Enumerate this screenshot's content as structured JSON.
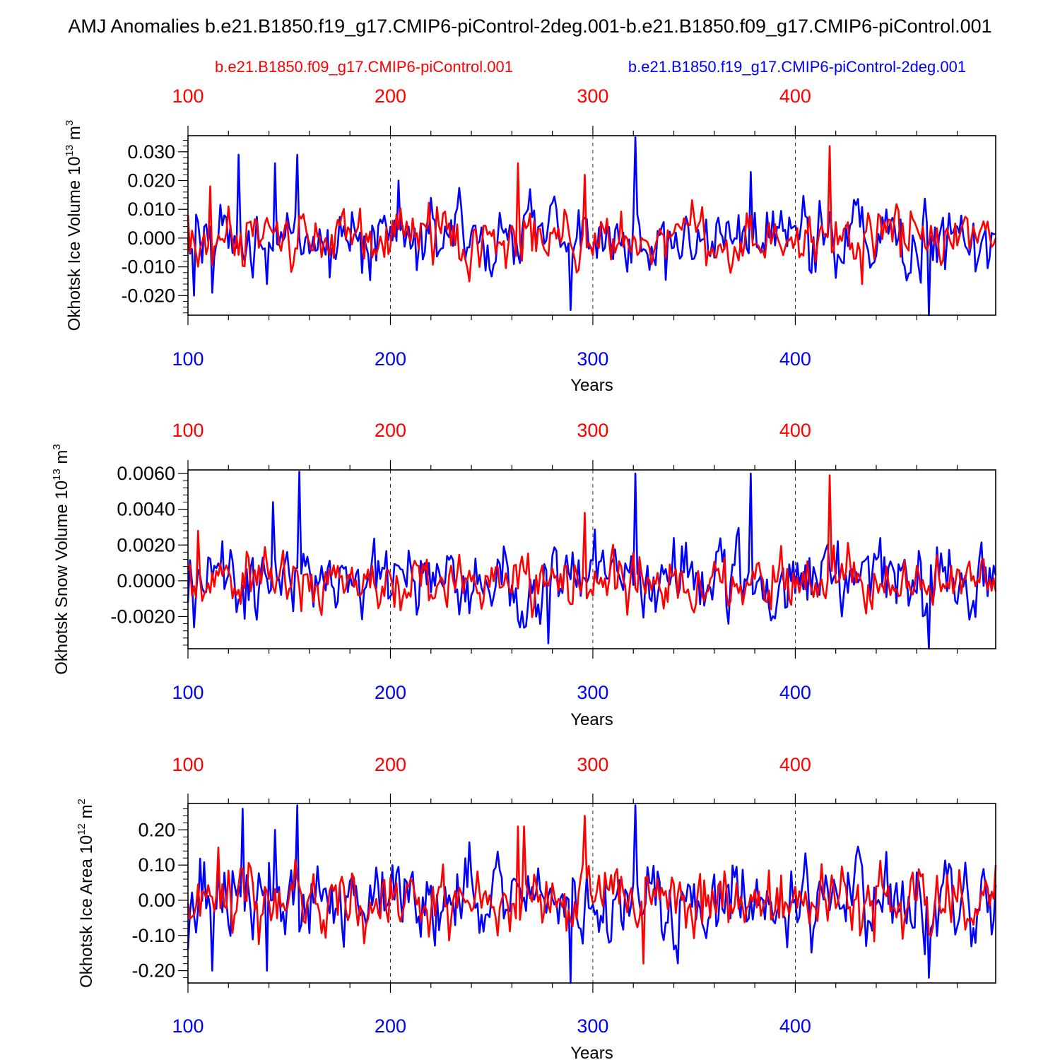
{
  "title": "AMJ Anomalies b.e21.B1850.f19_g17.CMIP6-piControl-2deg.001-b.e21.B1850.f09_g17.CMIP6-piControl.001",
  "legend": [
    {
      "name": "b.e21.B1850.f09_g17.CMIP6-piControl.001",
      "color": "#ff0000"
    },
    {
      "name": "b.e21.B1850.f19_g17.CMIP6-piControl-2deg.001",
      "color": "#0000ff"
    }
  ],
  "colors": {
    "red": "#ff0000",
    "blue": "#0000ff",
    "axis": "#000000"
  },
  "chart_data": [
    {
      "type": "line",
      "ylabel": {
        "text": "Okhotsk Ice Volume 10",
        "exp": "13",
        "unit": " m",
        "unit_exp": "3"
      },
      "xlabel": "Years",
      "xlim": [
        100,
        499
      ],
      "ylim": [
        -0.0268,
        0.0356
      ],
      "yticks": [
        -0.02,
        -0.01,
        0.0,
        0.01,
        0.02,
        0.03
      ],
      "ytick_labels": [
        "-0.020",
        "-0.010",
        "0.000",
        "0.010",
        "0.020",
        "0.030"
      ],
      "xticks_top": [
        "100",
        "200",
        "300",
        "400"
      ],
      "xticks_bottom": [
        "100",
        "200",
        "300",
        "400"
      ],
      "series": [
        {
          "name": "b.e21.B1850.f19_g17.CMIP6-piControl-2deg.001",
          "color": "#0000ff",
          "amplitude": 0.0075,
          "seed": 17,
          "spikes": [
            [
              100,
              0.0
            ],
            [
              103,
              -0.02
            ],
            [
              112,
              -0.019
            ],
            [
              125,
              0.029
            ],
            [
              139,
              -0.016
            ],
            [
              143,
              0.026
            ],
            [
              154,
              0.029
            ],
            [
              204,
              0.02
            ],
            [
              289,
              -0.025
            ],
            [
              321,
              0.035
            ],
            [
              378,
              0.023
            ],
            [
              466,
              -0.027
            ]
          ]
        },
        {
          "name": "b.e21.B1850.f09_g17.CMIP6-piControl.001",
          "color": "#ff0000",
          "amplitude": 0.0055,
          "seed": 41,
          "spikes": [
            [
              100,
              0.008
            ],
            [
              111,
              0.018
            ],
            [
              263,
              0.026
            ],
            [
              296,
              0.022
            ],
            [
              417,
              0.032
            ],
            [
              433,
              -0.016
            ],
            [
              499,
              0.0
            ]
          ]
        }
      ]
    },
    {
      "type": "line",
      "ylabel": {
        "text": "Okhotsk Snow Volume 10",
        "exp": "13",
        "unit": " m",
        "unit_exp": "3"
      },
      "xlabel": "Years",
      "xlim": [
        100,
        499
      ],
      "ylim": [
        -0.0038,
        0.0062
      ],
      "yticks": [
        -0.002,
        0.0,
        0.002,
        0.004,
        0.006
      ],
      "ytick_labels": [
        "-0.0020",
        "0.0000",
        "0.0020",
        "0.0040",
        "0.0060"
      ],
      "xticks_top": [
        "100",
        "200",
        "300",
        "400"
      ],
      "xticks_bottom": [
        "100",
        "200",
        "300",
        "400"
      ],
      "series": [
        {
          "name": "b.e21.B1850.f19_g17.CMIP6-piControl-2deg.001",
          "color": "#0000ff",
          "amplitude": 0.0012,
          "seed": 23,
          "spikes": [
            [
              103,
              -0.0026
            ],
            [
              142,
              0.0044
            ],
            [
              155,
              0.0061
            ],
            [
              278,
              -0.0035
            ],
            [
              321,
              0.006
            ],
            [
              378,
              0.006
            ],
            [
              466,
              -0.0038
            ]
          ]
        },
        {
          "name": "b.e21.B1850.f09_g17.CMIP6-piControl.001",
          "color": "#ff0000",
          "amplitude": 0.0009,
          "seed": 59,
          "spikes": [
            [
              105,
              0.0028
            ],
            [
              296,
              0.0038
            ],
            [
              417,
              0.0059
            ]
          ]
        }
      ]
    },
    {
      "type": "line",
      "ylabel": {
        "text": "Okhotsk Ice Area 10",
        "exp": "12",
        "unit": " m",
        "unit_exp": "2"
      },
      "xlabel": "Years",
      "xlim": [
        100,
        499
      ],
      "ylim": [
        -0.235,
        0.275
      ],
      "yticks": [
        -0.2,
        -0.1,
        0.0,
        0.1,
        0.2
      ],
      "ytick_labels": [
        "-0.20",
        "-0.10",
        "0.00",
        "0.10",
        "0.20"
      ],
      "xticks_top": [
        "100",
        "200",
        "300",
        "400"
      ],
      "xticks_bottom": [
        "100",
        "200",
        "300",
        "400"
      ],
      "series": [
        {
          "name": "b.e21.B1850.f19_g17.CMIP6-piControl-2deg.001",
          "color": "#0000ff",
          "amplitude": 0.07,
          "seed": 31,
          "spikes": [
            [
              100,
              -0.14
            ],
            [
              112,
              -0.2
            ],
            [
              127,
              0.26
            ],
            [
              139,
              -0.2
            ],
            [
              143,
              0.2
            ],
            [
              154,
              0.27
            ],
            [
              289,
              -0.235
            ],
            [
              321,
              0.27
            ],
            [
              466,
              -0.22
            ]
          ]
        },
        {
          "name": "b.e21.B1850.f09_g17.CMIP6-piControl.001",
          "color": "#ff0000",
          "amplitude": 0.055,
          "seed": 73,
          "spikes": [
            [
              115,
              0.15
            ],
            [
              263,
              0.21
            ],
            [
              266,
              0.21
            ],
            [
              296,
              0.24
            ],
            [
              325,
              -0.18
            ],
            [
              499,
              0.1
            ]
          ]
        }
      ]
    }
  ]
}
